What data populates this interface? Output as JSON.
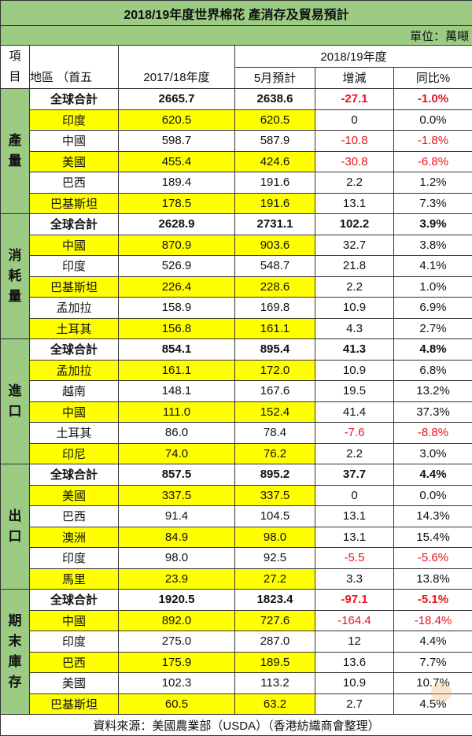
{
  "title": "2018/19年度世界棉花  產消存及貿易預計",
  "unit": "單位：萬噸",
  "headers": {
    "item": "項目",
    "region": "地區 （首五",
    "y2017": "2017/18年度",
    "y2018": "2018/19年度",
    "may": "5月預計",
    "change": "增減",
    "yoy": "同比%"
  },
  "sections": [
    {
      "label": "產量",
      "rows": [
        [
          "全球合計",
          "2665.7",
          "2638.6",
          "-27.1",
          "-1.0%",
          false,
          true
        ],
        [
          "印度",
          "620.5",
          "620.5",
          "0",
          "0.0%",
          true,
          false
        ],
        [
          "中國",
          "598.7",
          "587.9",
          "-10.8",
          "-1.8%",
          false,
          false
        ],
        [
          "美國",
          "455.4",
          "424.6",
          "-30.8",
          "-6.8%",
          true,
          false
        ],
        [
          "巴西",
          "189.4",
          "191.6",
          "2.2",
          "1.2%",
          false,
          false
        ],
        [
          "巴基斯坦",
          "178.5",
          "191.6",
          "13.1",
          "7.3%",
          true,
          false
        ]
      ]
    },
    {
      "label": "消耗量",
      "rows": [
        [
          "全球合計",
          "2628.9",
          "2731.1",
          "102.2",
          "3.9%",
          false,
          true
        ],
        [
          "中國",
          "870.9",
          "903.6",
          "32.7",
          "3.8%",
          true,
          false
        ],
        [
          "印度",
          "526.9",
          "548.7",
          "21.8",
          "4.1%",
          false,
          false
        ],
        [
          "巴基斯坦",
          "226.4",
          "228.6",
          "2.2",
          "1.0%",
          true,
          false
        ],
        [
          "孟加拉",
          "158.9",
          "169.8",
          "10.9",
          "6.9%",
          false,
          false
        ],
        [
          "土耳其",
          "156.8",
          "161.1",
          "4.3",
          "2.7%",
          true,
          false
        ]
      ]
    },
    {
      "label": "進口",
      "rows": [
        [
          "全球合計",
          "854.1",
          "895.4",
          "41.3",
          "4.8%",
          false,
          true
        ],
        [
          "孟加拉",
          "161.1",
          "172.0",
          "10.9",
          "6.8%",
          true,
          false
        ],
        [
          "越南",
          "148.1",
          "167.6",
          "19.5",
          "13.2%",
          false,
          false
        ],
        [
          "中國",
          "111.0",
          "152.4",
          "41.4",
          "37.3%",
          true,
          false
        ],
        [
          "土耳其",
          "86.0",
          "78.4",
          "-7.6",
          "-8.8%",
          false,
          false
        ],
        [
          "印尼",
          "74.0",
          "76.2",
          "2.2",
          "3.0%",
          true,
          false
        ]
      ]
    },
    {
      "label": "出口",
      "rows": [
        [
          "全球合計",
          "857.5",
          "895.2",
          "37.7",
          "4.4%",
          false,
          true
        ],
        [
          "美國",
          "337.5",
          "337.5",
          "0",
          "0.0%",
          true,
          false
        ],
        [
          "巴西",
          "91.4",
          "104.5",
          "13.1",
          "14.3%",
          false,
          false
        ],
        [
          "澳洲",
          "84.9",
          "98.0",
          "13.1",
          "15.4%",
          true,
          false
        ],
        [
          "印度",
          "98.0",
          "92.5",
          "-5.5",
          "-5.6%",
          false,
          false
        ],
        [
          "馬里",
          "23.9",
          "27.2",
          "3.3",
          "13.8%",
          true,
          false
        ]
      ]
    },
    {
      "label": "期末庫存",
      "rows": [
        [
          "全球合計",
          "1920.5",
          "1823.4",
          "-97.1",
          "-5.1%",
          false,
          true
        ],
        [
          "中國",
          "892.0",
          "727.6",
          "-164.4",
          "-18.4%",
          true,
          false
        ],
        [
          "印度",
          "275.0",
          "287.0",
          "12",
          "4.4%",
          false,
          false
        ],
        [
          "巴西",
          "175.9",
          "189.5",
          "13.6",
          "7.7%",
          true,
          false
        ],
        [
          "美國",
          "102.3",
          "113.2",
          "10.9",
          "10.7%",
          false,
          false
        ],
        [
          "巴基斯坦",
          "60.5",
          "63.2",
          "2.7",
          "4.5%",
          true,
          false
        ]
      ]
    }
  ],
  "footer": "資料來源：美國農業部（USDA）（香港紡織商會整理）",
  "watermark": "文匯報",
  "colors": {
    "header_green": "#9ccc83",
    "highlight": "#ffff00",
    "negative": "#e8141e"
  }
}
